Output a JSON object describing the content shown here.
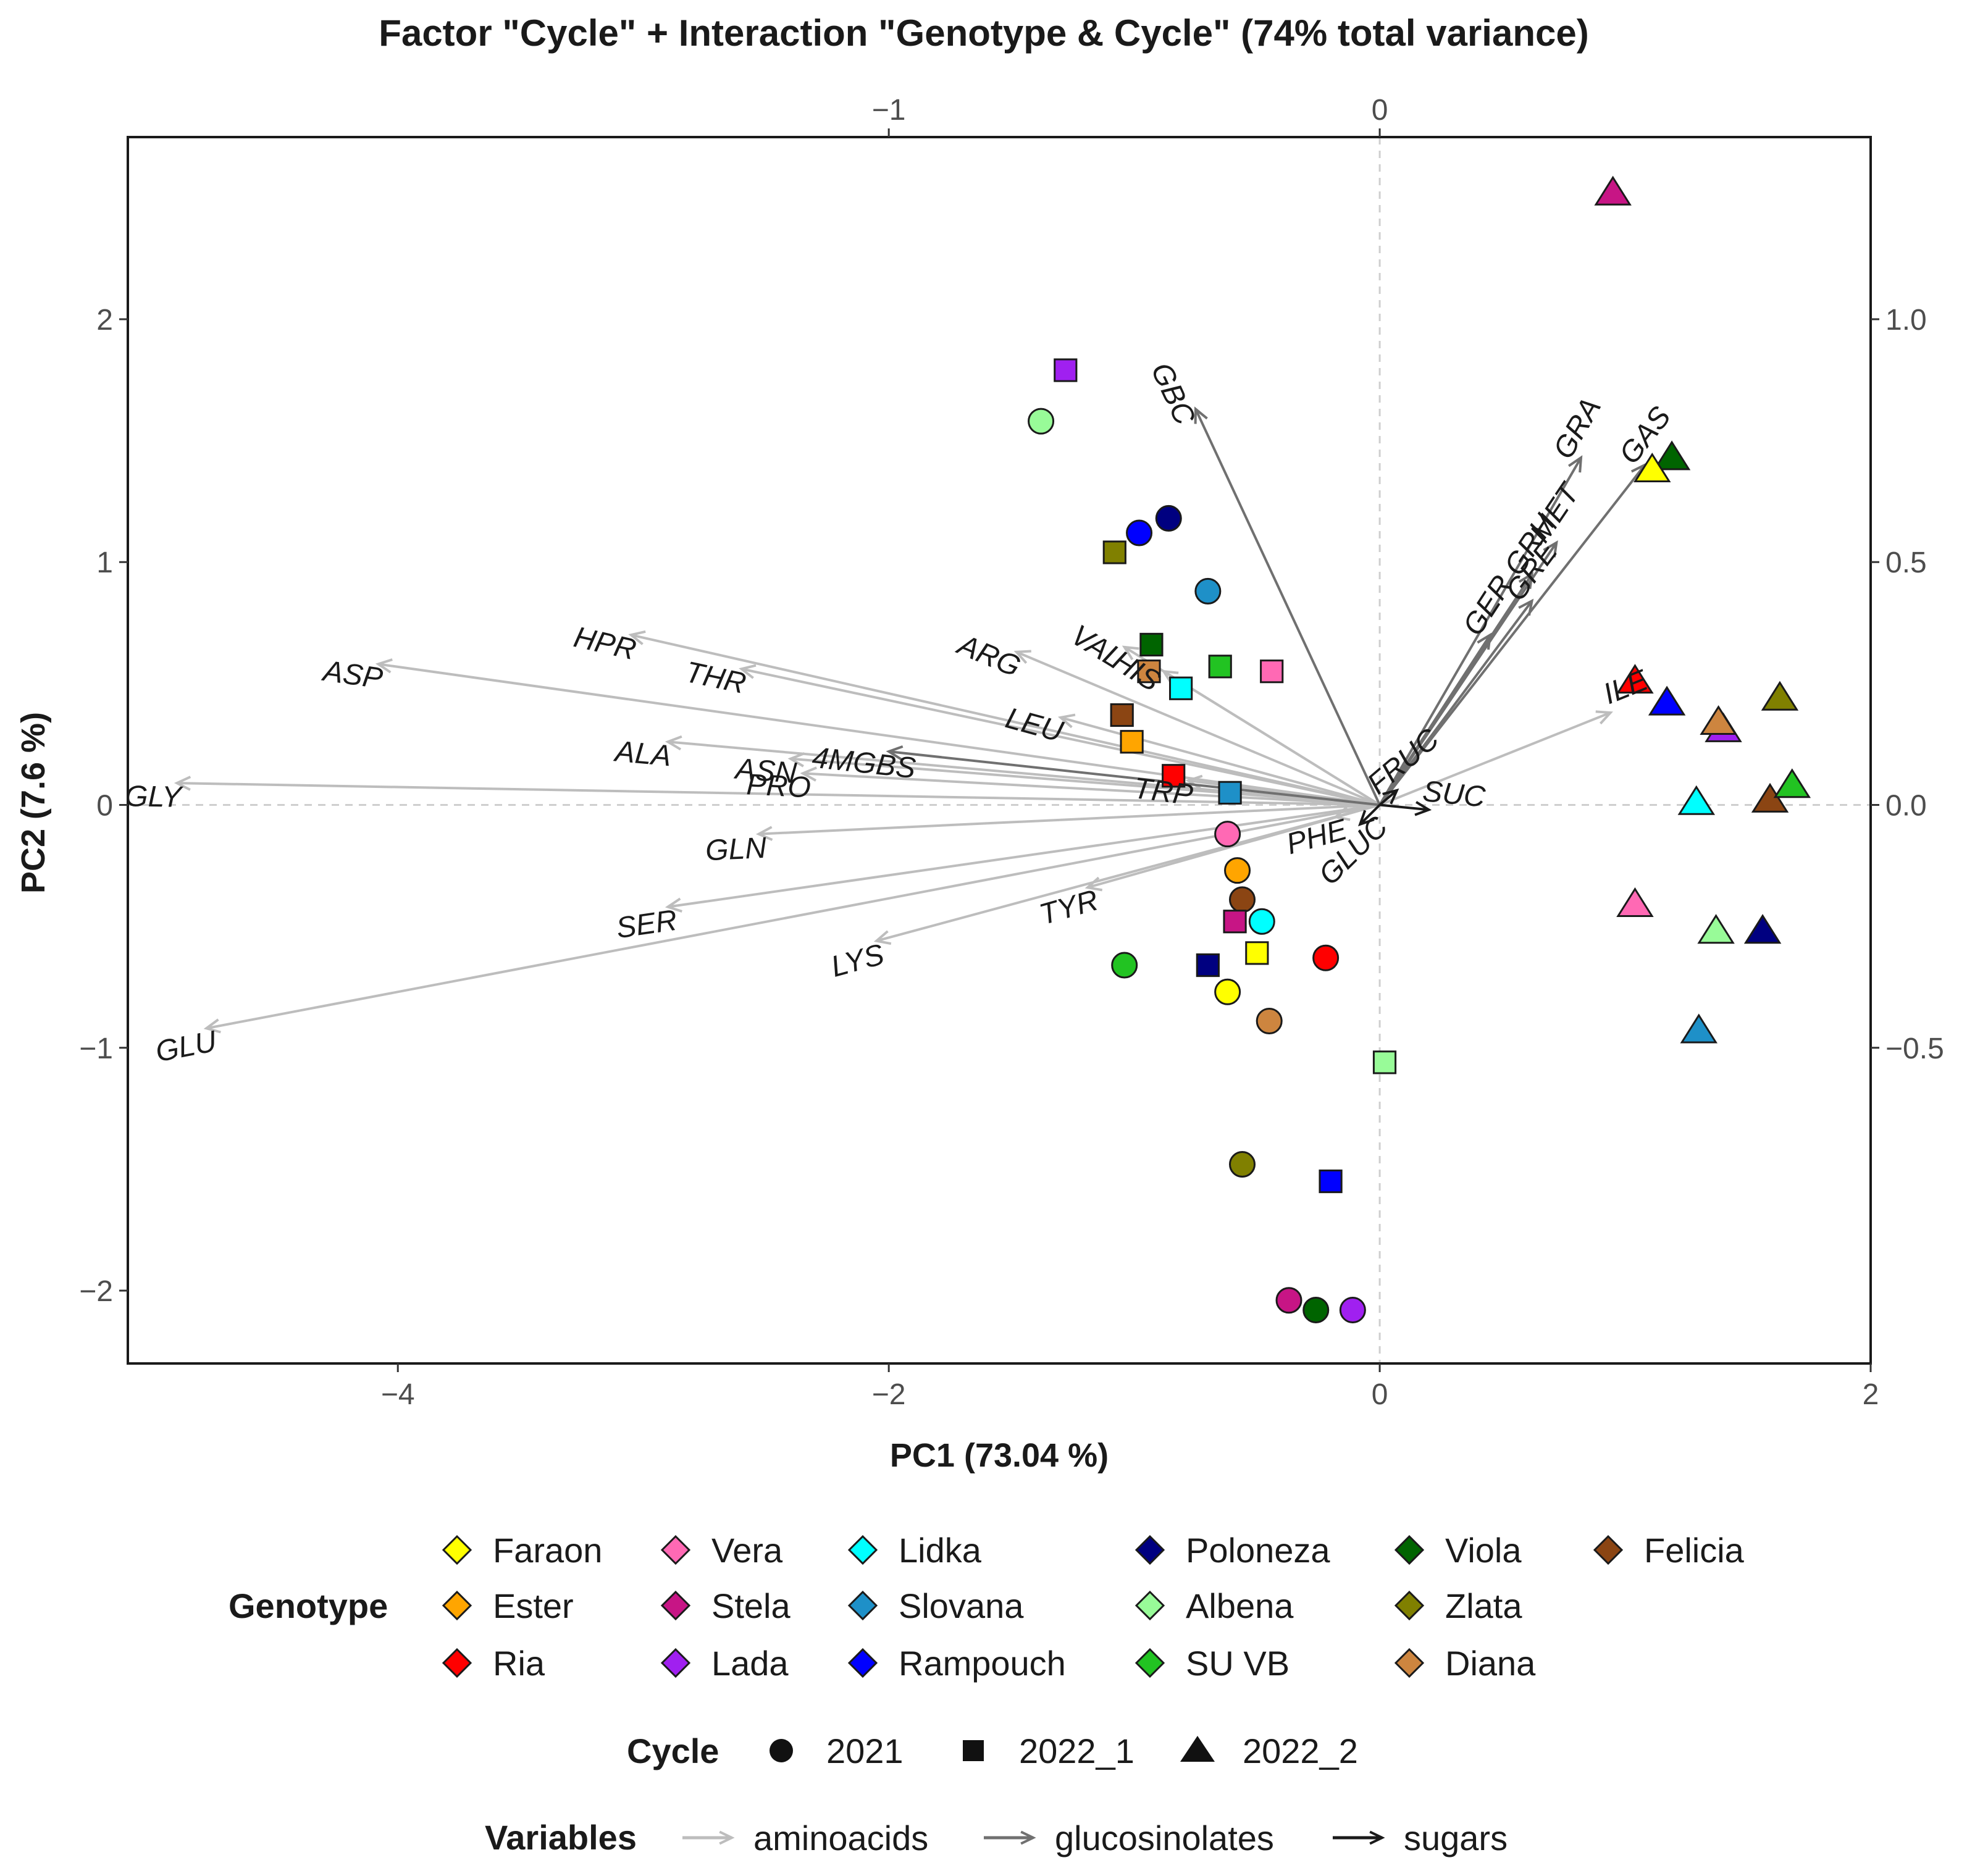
{
  "chart_data": {
    "type": "scatter",
    "subtype": "pca-biplot",
    "title": "Factor \"Cycle\" + Interaction \"Genotype & Cycle\" (74% total variance)",
    "xlabel": "PC1 (73.04 %)",
    "ylabel": "PC2 (7.6 %)",
    "xlim": [
      -5.1,
      2.0
    ],
    "ylim": [
      -2.3,
      2.75
    ],
    "x_ticks": [
      -4,
      -2,
      0,
      2
    ],
    "y_ticks": [
      -2,
      -1,
      0,
      1,
      2
    ],
    "x_tick_labels": [
      "−4",
      "−2",
      "0",
      "2"
    ],
    "y_tick_labels": [
      "−2",
      "−1",
      "0",
      "1",
      "2"
    ],
    "top_axis": {
      "ticks": [
        -1,
        0
      ],
      "tick_labels": [
        "−1",
        "0"
      ],
      "scale": 2.0
    },
    "right_axis": {
      "ticks": [
        1.0,
        0.5,
        0.0,
        -0.5
      ],
      "tick_labels": [
        "1.0",
        "0.5",
        "0.0",
        "−0.5"
      ],
      "scale": 2.0
    },
    "grid": false,
    "reference_lines": {
      "x": 0,
      "y": 0,
      "style": "dashed"
    },
    "variables": [
      {
        "label": "GBC",
        "group": "glucosinolates",
        "x": -0.75,
        "y": 1.63
      },
      {
        "label": "GRA",
        "group": "glucosinolates",
        "x": 0.82,
        "y": 1.43
      },
      {
        "label": "GAS",
        "group": "glucosinolates",
        "x": 1.08,
        "y": 1.4
      },
      {
        "label": "GRH",
        "group": "glucosinolates",
        "x": 0.62,
        "y": 0.95
      },
      {
        "label": "MET",
        "group": "glucosinolates",
        "x": 0.72,
        "y": 1.08
      },
      {
        "label": "GER",
        "group": "glucosinolates",
        "x": 0.45,
        "y": 0.7
      },
      {
        "label": "GRE",
        "group": "glucosinolates",
        "x": 0.62,
        "y": 0.84
      },
      {
        "label": "4MGBS",
        "group": "glucosinolates",
        "x": -2.0,
        "y": 0.22
      },
      {
        "label": "FRUC",
        "group": "sugars",
        "x": 0.07,
        "y": 0.06
      },
      {
        "label": "SUC",
        "group": "sugars",
        "x": 0.2,
        "y": -0.02
      },
      {
        "label": "GLUC",
        "group": "sugars",
        "x": -0.08,
        "y": -0.08
      },
      {
        "label": "ASP",
        "group": "aminoacids",
        "x": -4.08,
        "y": 0.58
      },
      {
        "label": "HPR",
        "group": "aminoacids",
        "x": -3.05,
        "y": 0.7
      },
      {
        "label": "THR",
        "group": "aminoacids",
        "x": -2.6,
        "y": 0.56
      },
      {
        "label": "ARG",
        "group": "aminoacids",
        "x": -1.48,
        "y": 0.63
      },
      {
        "label": "VAL",
        "group": "aminoacids",
        "x": -1.04,
        "y": 0.65
      },
      {
        "label": "HIS",
        "group": "aminoacids",
        "x": -0.88,
        "y": 0.55
      },
      {
        "label": "LEU",
        "group": "aminoacids",
        "x": -1.3,
        "y": 0.36
      },
      {
        "label": "GLY",
        "group": "aminoacids",
        "x": -4.9,
        "y": 0.09
      },
      {
        "label": "ALA",
        "group": "aminoacids",
        "x": -2.9,
        "y": 0.26
      },
      {
        "label": "ASN",
        "group": "aminoacids",
        "x": -2.4,
        "y": 0.19
      },
      {
        "label": "PRO",
        "group": "aminoacids",
        "x": -2.35,
        "y": 0.13
      },
      {
        "label": "TRP",
        "group": "aminoacids",
        "x": -0.78,
        "y": 0.1
      },
      {
        "label": "GLN",
        "group": "aminoacids",
        "x": -2.53,
        "y": -0.12
      },
      {
        "label": "PHE",
        "group": "aminoacids",
        "x": -0.18,
        "y": -0.05
      },
      {
        "label": "SER",
        "group": "aminoacids",
        "x": -2.9,
        "y": -0.42
      },
      {
        "label": "TYR",
        "group": "aminoacids",
        "x": -1.19,
        "y": -0.34
      },
      {
        "label": "LYS",
        "group": "aminoacids",
        "x": -2.05,
        "y": -0.56
      },
      {
        "label": "GLU",
        "group": "aminoacids",
        "x": -4.78,
        "y": -0.92
      },
      {
        "label": "ILE",
        "group": "aminoacids",
        "x": 0.94,
        "y": 0.38
      }
    ],
    "points": [
      {
        "genotype": "Lada",
        "cycle": "2022_1",
        "x": -1.28,
        "y": 1.79
      },
      {
        "genotype": "Albena",
        "cycle": "2021",
        "x": -1.38,
        "y": 1.58
      },
      {
        "genotype": "Poloneza",
        "cycle": "2021",
        "x": -0.86,
        "y": 1.18
      },
      {
        "genotype": "Rampouch",
        "cycle": "2021",
        "x": -0.98,
        "y": 1.12
      },
      {
        "genotype": "Zlata",
        "cycle": "2022_1",
        "x": -1.08,
        "y": 1.04
      },
      {
        "genotype": "Slovana",
        "cycle": "2021",
        "x": -0.7,
        "y": 0.88
      },
      {
        "genotype": "Viola",
        "cycle": "2022_1",
        "x": -0.93,
        "y": 0.66
      },
      {
        "genotype": "SU VB",
        "cycle": "2022_1",
        "x": -0.65,
        "y": 0.57
      },
      {
        "genotype": "Vera",
        "cycle": "2022_1",
        "x": -0.44,
        "y": 0.55
      },
      {
        "genotype": "Diana",
        "cycle": "2022_1",
        "x": -0.94,
        "y": 0.55
      },
      {
        "genotype": "Lidka",
        "cycle": "2022_1",
        "x": -0.81,
        "y": 0.48
      },
      {
        "genotype": "Felicia",
        "cycle": "2022_1",
        "x": -1.05,
        "y": 0.37
      },
      {
        "genotype": "Ester",
        "cycle": "2022_1",
        "x": -1.01,
        "y": 0.26
      },
      {
        "genotype": "Ria",
        "cycle": "2022_1",
        "x": -0.84,
        "y": 0.12
      },
      {
        "genotype": "Slovana",
        "cycle": "2022_1",
        "x": -0.61,
        "y": 0.05
      },
      {
        "genotype": "Vera",
        "cycle": "2021",
        "x": -0.62,
        "y": -0.12
      },
      {
        "genotype": "Ester",
        "cycle": "2021",
        "x": -0.58,
        "y": -0.27
      },
      {
        "genotype": "Felicia",
        "cycle": "2021",
        "x": -0.56,
        "y": -0.39
      },
      {
        "genotype": "Stela",
        "cycle": "2022_1",
        "x": -0.59,
        "y": -0.48
      },
      {
        "genotype": "Lidka",
        "cycle": "2021",
        "x": -0.48,
        "y": -0.48
      },
      {
        "genotype": "SU VB",
        "cycle": "2021",
        "x": -1.04,
        "y": -0.66
      },
      {
        "genotype": "Poloneza",
        "cycle": "2022_1",
        "x": -0.7,
        "y": -0.66
      },
      {
        "genotype": "Faraon",
        "cycle": "2022_1",
        "x": -0.5,
        "y": -0.61
      },
      {
        "genotype": "Ria",
        "cycle": "2021",
        "x": -0.22,
        "y": -0.63
      },
      {
        "genotype": "Faraon",
        "cycle": "2021",
        "x": -0.62,
        "y": -0.77
      },
      {
        "genotype": "Diana",
        "cycle": "2021",
        "x": -0.45,
        "y": -0.89
      },
      {
        "genotype": "Albena",
        "cycle": "2022_1",
        "x": 0.02,
        "y": -1.06
      },
      {
        "genotype": "Zlata",
        "cycle": "2021",
        "x": -0.56,
        "y": -1.48
      },
      {
        "genotype": "Rampouch",
        "cycle": "2022_1",
        "x": -0.2,
        "y": -1.55
      },
      {
        "genotype": "Stela",
        "cycle": "2021",
        "x": -0.37,
        "y": -2.04
      },
      {
        "genotype": "Viola",
        "cycle": "2021",
        "x": -0.26,
        "y": -2.08
      },
      {
        "genotype": "Lada",
        "cycle": "2021",
        "x": -0.11,
        "y": -2.08
      },
      {
        "genotype": "Stela",
        "cycle": "2022_2",
        "x": 0.95,
        "y": 2.52
      },
      {
        "genotype": "Viola",
        "cycle": "2022_2",
        "x": 1.19,
        "y": 1.43
      },
      {
        "genotype": "Faraon",
        "cycle": "2022_2",
        "x": 1.11,
        "y": 1.38
      },
      {
        "genotype": "Ria",
        "cycle": "2022_2",
        "x": 1.04,
        "y": 0.51
      },
      {
        "genotype": "Rampouch",
        "cycle": "2022_2",
        "x": 1.17,
        "y": 0.42
      },
      {
        "genotype": "Zlata",
        "cycle": "2022_2",
        "x": 1.63,
        "y": 0.44
      },
      {
        "genotype": "Lada",
        "cycle": "2022_2",
        "x": 1.4,
        "y": 0.31
      },
      {
        "genotype": "Diana",
        "cycle": "2022_2",
        "x": 1.38,
        "y": 0.34
      },
      {
        "genotype": "Lidka",
        "cycle": "2022_2",
        "x": 1.29,
        "y": 0.01
      },
      {
        "genotype": "Felicia",
        "cycle": "2022_2",
        "x": 1.59,
        "y": 0.02
      },
      {
        "genotype": "SU VB",
        "cycle": "2022_2",
        "x": 1.68,
        "y": 0.08
      },
      {
        "genotype": "Vera",
        "cycle": "2022_2",
        "x": 1.04,
        "y": -0.41
      },
      {
        "genotype": "Albena",
        "cycle": "2022_2",
        "x": 1.37,
        "y": -0.52
      },
      {
        "genotype": "Poloneza",
        "cycle": "2022_2",
        "x": 1.56,
        "y": -0.52
      },
      {
        "genotype": "Slovana",
        "cycle": "2022_2",
        "x": 1.3,
        "y": -0.93
      }
    ],
    "legend": {
      "genotype_title": "Genotype",
      "genotypes": [
        {
          "name": "Faraon",
          "color": "#FFFF00"
        },
        {
          "name": "Ester",
          "color": "#FFA500"
        },
        {
          "name": "Ria",
          "color": "#FF0000"
        },
        {
          "name": "Vera",
          "color": "#FF69B4"
        },
        {
          "name": "Stela",
          "color": "#C71585"
        },
        {
          "name": "Lada",
          "color": "#A020F0"
        },
        {
          "name": "Lidka",
          "color": "#00FFFF"
        },
        {
          "name": "Slovana",
          "color": "#1E90C8"
        },
        {
          "name": "Rampouch",
          "color": "#0000FF"
        },
        {
          "name": "Poloneza",
          "color": "#000080"
        },
        {
          "name": "Albena",
          "color": "#98FB98"
        },
        {
          "name": "SU VB",
          "color": "#22C322"
        },
        {
          "name": "Viola",
          "color": "#006400"
        },
        {
          "name": "Zlata",
          "color": "#808000"
        },
        {
          "name": "Diana",
          "color": "#CD853F"
        },
        {
          "name": "Felicia",
          "color": "#8B4513"
        }
      ],
      "cycle_title": "Cycle",
      "cycles": [
        {
          "name": "2021",
          "shape": "circle"
        },
        {
          "name": "2022_1",
          "shape": "square"
        },
        {
          "name": "2022_2",
          "shape": "triangle"
        }
      ],
      "variables_title": "Variables",
      "variable_groups": [
        {
          "name": "aminoacids",
          "color": "#BDBDBD"
        },
        {
          "name": "glucosinolates",
          "color": "#707070"
        },
        {
          "name": "sugars",
          "color": "#1A1A1A"
        }
      ]
    }
  }
}
